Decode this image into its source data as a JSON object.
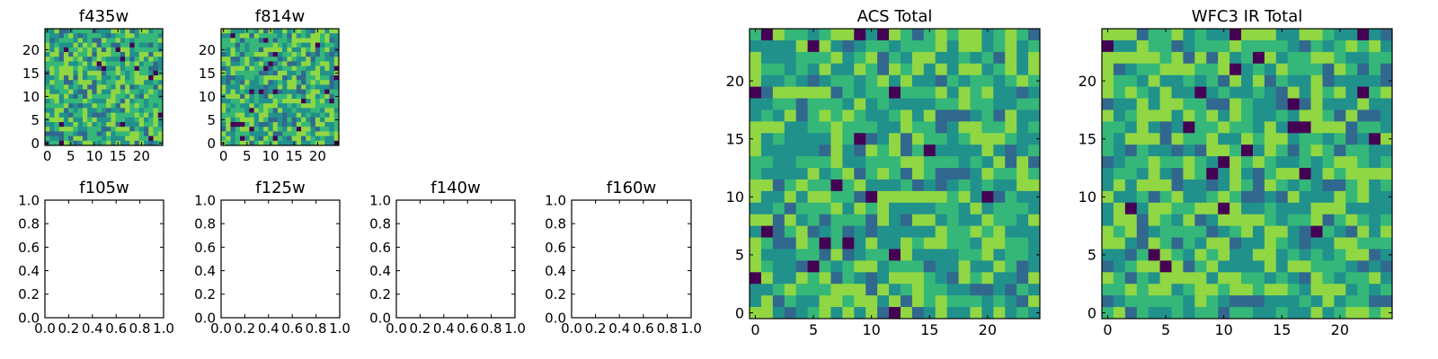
{
  "colormap": [
    "#440154",
    "#31688e",
    "#21918c",
    "#35b779",
    "#90d743",
    "#fde725"
  ],
  "chart_data": [
    {
      "type": "heatmap",
      "title": "f435w",
      "grid_size": 25,
      "xlim": [
        -0.5,
        24.5
      ],
      "ylim": [
        -0.5,
        24.5
      ],
      "xticks": [
        0,
        5,
        10,
        15,
        20
      ],
      "yticks": [
        0,
        5,
        10,
        15,
        20
      ],
      "xtick_labels": [
        "0",
        "5",
        "10",
        "15",
        "20"
      ],
      "ytick_labels": [
        "0",
        "5",
        "10",
        "15",
        "20"
      ],
      "seed": 11,
      "value_range": [
        0,
        1
      ],
      "note_values": "per-pixel random noise field, 25x25"
    },
    {
      "type": "heatmap",
      "title": "f814w",
      "grid_size": 25,
      "xlim": [
        -0.5,
        24.5
      ],
      "ylim": [
        -0.5,
        24.5
      ],
      "xticks": [
        0,
        5,
        10,
        15,
        20
      ],
      "yticks": [
        0,
        5,
        10,
        15,
        20
      ],
      "xtick_labels": [
        "0",
        "5",
        "10",
        "15",
        "20"
      ],
      "ytick_labels": [
        "0",
        "5",
        "10",
        "15",
        "20"
      ],
      "seed": 29,
      "value_range": [
        0,
        1
      ]
    },
    {
      "type": "empty",
      "title": "f105w",
      "xlim": [
        0,
        1
      ],
      "ylim": [
        0,
        1
      ],
      "xtick_labels": [
        "0.0",
        "0.2",
        "0.4",
        "0.6",
        "0.8",
        "1.0"
      ],
      "ytick_labels": [
        "0.0",
        "0.2",
        "0.4",
        "0.6",
        "0.8",
        "1.0"
      ]
    },
    {
      "type": "empty",
      "title": "f125w",
      "xlim": [
        0,
        1
      ],
      "ylim": [
        0,
        1
      ],
      "xtick_labels": [
        "0.0",
        "0.2",
        "0.4",
        "0.6",
        "0.8",
        "1.0"
      ],
      "ytick_labels": [
        "0.0",
        "0.2",
        "0.4",
        "0.6",
        "0.8",
        "1.0"
      ]
    },
    {
      "type": "empty",
      "title": "f140w",
      "xlim": [
        0,
        1
      ],
      "ylim": [
        0,
        1
      ],
      "xtick_labels": [
        "0.0",
        "0.2",
        "0.4",
        "0.6",
        "0.8",
        "1.0"
      ],
      "ytick_labels": [
        "0.0",
        "0.2",
        "0.4",
        "0.6",
        "0.8",
        "1.0"
      ]
    },
    {
      "type": "empty",
      "title": "f160w",
      "xlim": [
        0,
        1
      ],
      "ylim": [
        0,
        1
      ],
      "xtick_labels": [
        "0.0",
        "0.2",
        "0.4",
        "0.6",
        "0.8",
        "1.0"
      ],
      "ytick_labels": [
        "0.0",
        "0.2",
        "0.4",
        "0.6",
        "0.8",
        "1.0"
      ]
    },
    {
      "type": "heatmap",
      "title": "ACS Total",
      "grid_size": 25,
      "xlim": [
        -0.5,
        24.5
      ],
      "ylim": [
        -0.5,
        24.5
      ],
      "xticks": [
        0,
        5,
        10,
        15,
        20
      ],
      "yticks": [
        0,
        5,
        10,
        15,
        20
      ],
      "xtick_labels": [
        "0",
        "5",
        "10",
        "15",
        "20"
      ],
      "ytick_labels": [
        "0",
        "5",
        "10",
        "15",
        "20"
      ],
      "seed": 47,
      "value_range": [
        0,
        1
      ]
    },
    {
      "type": "heatmap",
      "title": "WFC3 IR Total",
      "grid_size": 25,
      "xlim": [
        -0.5,
        24.5
      ],
      "ylim": [
        -0.5,
        24.5
      ],
      "xticks": [
        0,
        5,
        10,
        15,
        20
      ],
      "yticks": [
        0,
        5,
        10,
        15,
        20
      ],
      "xtick_labels": [
        "0",
        "5",
        "10",
        "15",
        "20"
      ],
      "ytick_labels": [
        "0",
        "5",
        "10",
        "15",
        "20"
      ],
      "seed": 83,
      "value_range": [
        0,
        1
      ]
    }
  ]
}
